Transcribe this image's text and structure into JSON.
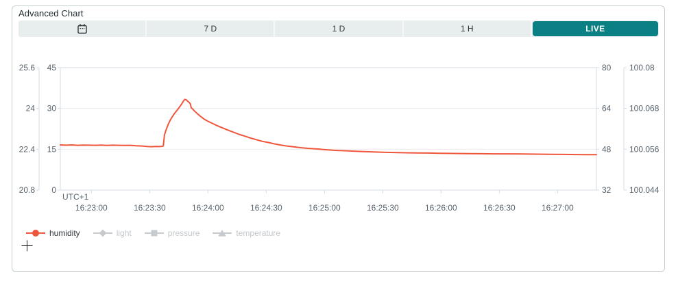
{
  "card": {
    "title": "Advanced Chart"
  },
  "toolbar": {
    "buttons": [
      {
        "id": "calendar",
        "icon": "calendar-icon",
        "label": ""
      },
      {
        "id": "7d",
        "label": "7 D"
      },
      {
        "id": "1d",
        "label": "1 D"
      },
      {
        "id": "1h",
        "label": "1 H"
      },
      {
        "id": "live",
        "label": "LIVE",
        "active": true
      }
    ],
    "active_color": "#0a8085",
    "active_text_color": "#ffffff"
  },
  "icons": {
    "calendar": "calendar-icon",
    "plus": "plus-icon"
  },
  "colors": {
    "card_border": "#c7cfce",
    "toolbar_bg": "#e8eeed",
    "accent": "#0a8085",
    "series_red": "#ef553b",
    "grid_line": "#ebebeb",
    "axis_line": "#d5dce6",
    "tick_text": "#58636d",
    "inactive_gray": "#c6cbd0"
  },
  "chart_data": {
    "type": "line",
    "title": "",
    "grid": true,
    "x_axis": {
      "title": "UTC+1",
      "tick_labels": [
        "16:23:00",
        "16:23:30",
        "16:24:00",
        "16:24:30",
        "16:25:00",
        "16:25:30",
        "16:26:00",
        "16:26:30",
        "16:27:00"
      ],
      "tick_seconds": [
        0,
        30,
        60,
        90,
        120,
        150,
        180,
        210,
        240
      ],
      "range_seconds": [
        -16,
        260
      ]
    },
    "y_axes": [
      {
        "name": "temperature",
        "side": "left",
        "slot": "outer",
        "ticks": [
          "25.6",
          "24",
          "22.4",
          "20.8"
        ],
        "range": [
          20.8,
          25.6
        ]
      },
      {
        "name": "humidity",
        "side": "left",
        "slot": "inner",
        "ticks": [
          "45",
          "30",
          "15",
          "0"
        ],
        "range": [
          0,
          45
        ]
      },
      {
        "name": "light",
        "side": "right",
        "slot": "inner",
        "ticks": [
          "80",
          "64",
          "48",
          "32"
        ],
        "range": [
          32,
          80
        ]
      },
      {
        "name": "pressure",
        "side": "right",
        "slot": "outer",
        "ticks": [
          "100.08",
          "100.068",
          "100.056",
          "100.044"
        ],
        "range": [
          100.044,
          100.08
        ]
      }
    ],
    "series": [
      {
        "name": "humidity",
        "color": "#ef553b",
        "marker": "circle",
        "visible": true,
        "y_axis": "humidity",
        "points": [
          [
            -16,
            16.6
          ],
          [
            -13,
            16.5
          ],
          [
            -10,
            16.6
          ],
          [
            -7,
            16.45
          ],
          [
            -4,
            16.55
          ],
          [
            -1,
            16.5
          ],
          [
            2,
            16.45
          ],
          [
            5,
            16.55
          ],
          [
            8,
            16.4
          ],
          [
            11,
            16.5
          ],
          [
            14,
            16.45
          ],
          [
            17,
            16.4
          ],
          [
            20,
            16.45
          ],
          [
            23,
            16.3
          ],
          [
            26,
            16.2
          ],
          [
            29,
            16.0
          ],
          [
            31,
            15.95
          ],
          [
            33,
            16.05
          ],
          [
            35,
            16.0
          ],
          [
            36.5,
            16.1
          ],
          [
            37,
            16.2
          ],
          [
            37.6,
            20.3
          ],
          [
            38.5,
            22.2
          ],
          [
            39.5,
            24.1
          ],
          [
            40.5,
            25.6
          ],
          [
            41.5,
            26.8
          ],
          [
            42.5,
            27.9
          ],
          [
            43.5,
            28.8
          ],
          [
            44.5,
            29.7
          ],
          [
            45.5,
            30.7
          ],
          [
            46.5,
            31.7
          ],
          [
            47.3,
            32.6
          ],
          [
            48,
            33.3
          ],
          [
            48.8,
            33.2
          ],
          [
            49.5,
            32.7
          ],
          [
            50.3,
            32.2
          ],
          [
            50.9,
            31.7
          ],
          [
            51.4,
            30.2
          ],
          [
            52,
            29.9
          ],
          [
            53,
            29.1
          ],
          [
            54.5,
            28.1
          ],
          [
            56,
            27.2
          ],
          [
            58,
            26.1
          ],
          [
            60,
            25.3
          ],
          [
            62,
            24.6
          ],
          [
            64,
            23.9
          ],
          [
            66,
            23.3
          ],
          [
            68,
            22.7
          ],
          [
            70,
            22.1
          ],
          [
            73,
            21.3
          ],
          [
            76,
            20.5
          ],
          [
            79,
            19.8
          ],
          [
            82,
            19.1
          ],
          [
            85,
            18.5
          ],
          [
            88,
            17.9
          ],
          [
            91,
            17.5
          ],
          [
            94,
            17.0
          ],
          [
            97,
            16.6
          ],
          [
            100,
            16.25
          ],
          [
            104,
            15.9
          ],
          [
            108,
            15.55
          ],
          [
            112,
            15.3
          ],
          [
            116,
            15.1
          ],
          [
            120,
            14.85
          ],
          [
            125,
            14.6
          ],
          [
            130,
            14.45
          ],
          [
            135,
            14.3
          ],
          [
            140,
            14.15
          ],
          [
            145,
            14.0
          ],
          [
            150,
            13.9
          ],
          [
            156,
            13.8
          ],
          [
            162,
            13.7
          ],
          [
            168,
            13.65
          ],
          [
            174,
            13.6
          ],
          [
            180,
            13.5
          ],
          [
            187,
            13.45
          ],
          [
            194,
            13.4
          ],
          [
            201,
            13.35
          ],
          [
            208,
            13.3
          ],
          [
            215,
            13.3
          ],
          [
            222,
            13.25
          ],
          [
            229,
            13.2
          ],
          [
            236,
            13.15
          ],
          [
            243,
            13.1
          ],
          [
            250,
            13.05
          ],
          [
            255,
            13.0
          ],
          [
            260,
            13.0
          ]
        ]
      },
      {
        "name": "light",
        "color": "#c6cbd0",
        "marker": "diamond",
        "visible": false,
        "y_axis": "light",
        "points": []
      },
      {
        "name": "pressure",
        "color": "#c6cbd0",
        "marker": "square",
        "visible": false,
        "y_axis": "pressure",
        "points": []
      },
      {
        "name": "temperature",
        "color": "#c6cbd0",
        "marker": "triangle",
        "visible": false,
        "y_axis": "temperature",
        "points": []
      }
    ],
    "legend": {
      "position": "bottom-left",
      "items": [
        {
          "label": "humidity",
          "marker": "circle",
          "color": "#ef553b",
          "active": true
        },
        {
          "label": "light",
          "marker": "diamond",
          "color": "#c6cbd0",
          "active": false
        },
        {
          "label": "pressure",
          "marker": "square",
          "color": "#c6cbd0",
          "active": false
        },
        {
          "label": "temperature",
          "marker": "triangle",
          "color": "#c6cbd0",
          "active": false
        }
      ]
    }
  }
}
